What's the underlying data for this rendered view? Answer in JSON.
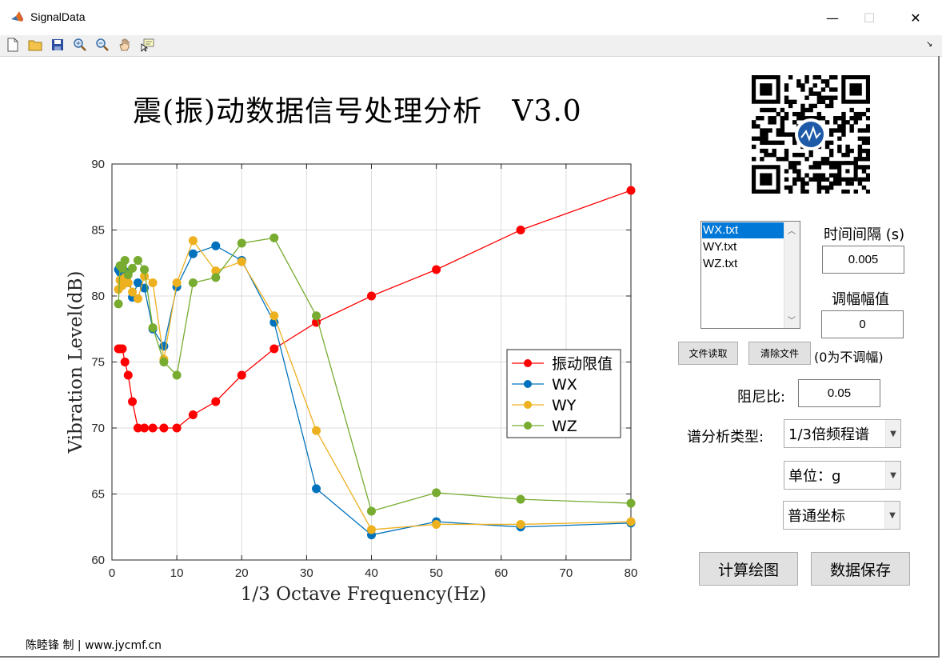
{
  "window": {
    "title": "SignalData",
    "minimize": "—",
    "maximize": "☐",
    "close": "✕"
  },
  "header": {
    "title": "震(振)动数据信号处理分析   V3.0"
  },
  "file_list": {
    "items": [
      "WX.txt",
      "WY.txt",
      "WZ.txt"
    ],
    "selected_index": 0
  },
  "controls": {
    "time_interval_label": "时间间隔 (s)",
    "time_interval_value": "0.005",
    "amplitude_label": "调幅幅值",
    "amplitude_value": "0",
    "amplitude_hint": "(0为不调幅)",
    "read_file_button": "文件读取",
    "clear_file_button": "清除文件",
    "damping_label": "阻尼比:",
    "damping_value": "0.05",
    "spectrum_type_label": "谱分析类型:",
    "spectrum_type_value": "1/3倍频程谱",
    "unit_value": "单位：g",
    "coordinate_value": "普通坐标",
    "compute_button": "计算绘图",
    "save_button": "数据保存"
  },
  "footer": {
    "credit": "陈睦锋 制 | www.jycmf.cn"
  },
  "colors": {
    "limit": "#ff0000",
    "wx": "#0072bd",
    "wy": "#edb120",
    "wz": "#77ac30",
    "selection": "#0078d7"
  },
  "chart_data": {
    "type": "line",
    "xlabel": "1/3 Octave Frequency(Hz)",
    "ylabel": "Vibration Level(dB)",
    "xlim": [
      0,
      80
    ],
    "ylim": [
      60,
      90
    ],
    "xticks": [
      0,
      10,
      20,
      30,
      40,
      50,
      60,
      70,
      80
    ],
    "yticks": [
      60,
      65,
      70,
      75,
      80,
      85,
      90
    ],
    "grid": true,
    "legend_position": "right-center",
    "series": [
      {
        "name": "振动限值",
        "color": "#ff0000",
        "x": [
          1,
          1.25,
          1.6,
          2,
          2.5,
          3.15,
          4,
          5,
          6.3,
          8,
          10,
          12.5,
          16,
          20,
          25,
          31.5,
          40,
          50,
          63,
          80
        ],
        "y": [
          76,
          76,
          76,
          75,
          74,
          72,
          70,
          70,
          70,
          70,
          70,
          71,
          72,
          74,
          76,
          78,
          80,
          82,
          85,
          88
        ]
      },
      {
        "name": "WX",
        "color": "#0072bd",
        "x": [
          1,
          1.25,
          1.6,
          2,
          2.5,
          3.15,
          4,
          5,
          6.3,
          8,
          10,
          12.5,
          16,
          20,
          25,
          31.5,
          40,
          50,
          63,
          80
        ],
        "y": [
          82.0,
          81.8,
          82.3,
          81.5,
          81.8,
          79.9,
          81.0,
          80.6,
          77.5,
          76.2,
          80.7,
          83.2,
          83.8,
          82.7,
          78.0,
          65.4,
          61.9,
          62.9,
          62.5,
          62.8
        ]
      },
      {
        "name": "WY",
        "color": "#edb120",
        "x": [
          1,
          1.25,
          1.6,
          2,
          2.5,
          3.15,
          4,
          5,
          6.3,
          8,
          10,
          12.5,
          16,
          20,
          25,
          31.5,
          40,
          50,
          63,
          80
        ],
        "y": [
          80.5,
          81.2,
          80.8,
          81.4,
          81.0,
          80.3,
          79.8,
          81.5,
          81.0,
          75.2,
          81.0,
          84.2,
          81.9,
          82.6,
          78.5,
          69.8,
          62.3,
          62.7,
          62.7,
          62.9
        ]
      },
      {
        "name": "WZ",
        "color": "#77ac30",
        "x": [
          1,
          1.25,
          1.6,
          2,
          2.5,
          3.15,
          4,
          5,
          6.3,
          8,
          10,
          12.5,
          16,
          20,
          25,
          31.5,
          40,
          50,
          63,
          80
        ],
        "y": [
          79.4,
          82.3,
          82.1,
          82.7,
          81.6,
          82.1,
          82.7,
          82.0,
          77.6,
          75.0,
          74.0,
          81.0,
          81.4,
          84.0,
          84.4,
          78.5,
          63.7,
          65.1,
          64.6,
          64.3
        ]
      }
    ]
  }
}
